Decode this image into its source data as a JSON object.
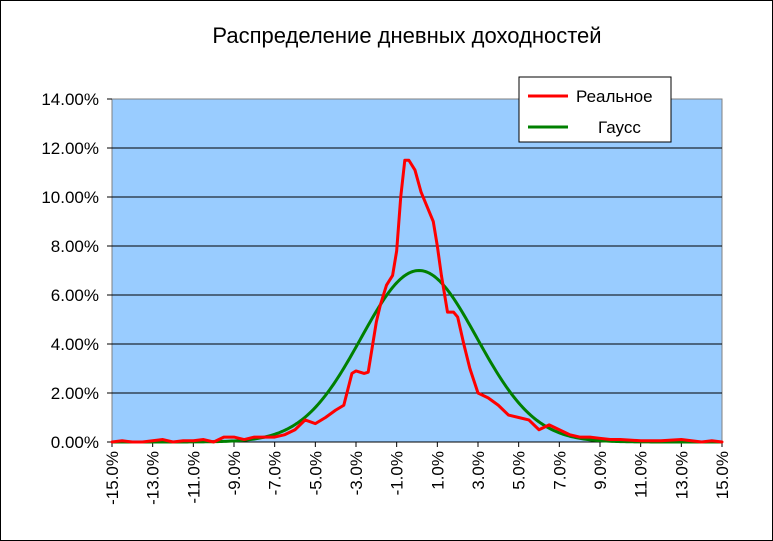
{
  "chart_data": {
    "type": "line",
    "title": "Распределение  дневных доходностей",
    "xlabel": "",
    "ylabel": "",
    "xlim": [
      -15,
      15
    ],
    "ylim": [
      0,
      14
    ],
    "y_ticks": [
      "0.00%",
      "2.00%",
      "4.00%",
      "6.00%",
      "8.00%",
      "10.00%",
      "12.00%",
      "14.00%"
    ],
    "x_ticks": [
      "-15.0%",
      "-13.0%",
      "-11.0%",
      "-9.0%",
      "-7.0%",
      "-5.0%",
      "-3.0%",
      "-1.0%",
      "1.0%",
      "3.0%",
      "5.0%",
      "7.0%",
      "9.0%",
      "11.0%",
      "13.0%",
      "15.0%"
    ],
    "grid": true,
    "legend_position": "top-right",
    "plot_background": "#99CCFF",
    "series": [
      {
        "name": "Реальное",
        "color": "#FF0000",
        "points": [
          [
            -15.0,
            0.0
          ],
          [
            -14.5,
            0.05
          ],
          [
            -14.0,
            0.0
          ],
          [
            -13.5,
            0.0
          ],
          [
            -13.0,
            0.05
          ],
          [
            -12.5,
            0.1
          ],
          [
            -12.0,
            0.0
          ],
          [
            -11.5,
            0.05
          ],
          [
            -11.0,
            0.05
          ],
          [
            -10.5,
            0.1
          ],
          [
            -10.0,
            0.0
          ],
          [
            -9.5,
            0.2
          ],
          [
            -9.0,
            0.2
          ],
          [
            -8.5,
            0.1
          ],
          [
            -8.0,
            0.2
          ],
          [
            -7.5,
            0.2
          ],
          [
            -7.0,
            0.2
          ],
          [
            -6.5,
            0.3
          ],
          [
            -6.0,
            0.5
          ],
          [
            -5.5,
            0.9
          ],
          [
            -5.0,
            0.75
          ],
          [
            -4.5,
            1.0
          ],
          [
            -4.0,
            1.3
          ],
          [
            -3.6,
            1.5
          ],
          [
            -3.2,
            2.8
          ],
          [
            -3.0,
            2.9
          ],
          [
            -2.6,
            2.8
          ],
          [
            -2.4,
            2.85
          ],
          [
            -2.0,
            4.9
          ],
          [
            -1.8,
            5.6
          ],
          [
            -1.5,
            6.4
          ],
          [
            -1.2,
            6.8
          ],
          [
            -1.0,
            7.8
          ],
          [
            -0.8,
            10.0
          ],
          [
            -0.6,
            11.5
          ],
          [
            -0.4,
            11.5
          ],
          [
            -0.1,
            11.1
          ],
          [
            0.2,
            10.2
          ],
          [
            0.5,
            9.6
          ],
          [
            0.8,
            9.0
          ],
          [
            1.0,
            8.0
          ],
          [
            1.2,
            6.8
          ],
          [
            1.5,
            5.3
          ],
          [
            1.8,
            5.3
          ],
          [
            2.0,
            5.1
          ],
          [
            2.3,
            4.0
          ],
          [
            2.6,
            3.0
          ],
          [
            3.0,
            2.0
          ],
          [
            3.5,
            1.8
          ],
          [
            4.0,
            1.5
          ],
          [
            4.5,
            1.1
          ],
          [
            5.0,
            1.0
          ],
          [
            5.5,
            0.9
          ],
          [
            6.0,
            0.5
          ],
          [
            6.5,
            0.7
          ],
          [
            7.0,
            0.5
          ],
          [
            7.5,
            0.3
          ],
          [
            8.0,
            0.2
          ],
          [
            8.5,
            0.2
          ],
          [
            9.0,
            0.15
          ],
          [
            9.5,
            0.1
          ],
          [
            10.0,
            0.1
          ],
          [
            11.0,
            0.05
          ],
          [
            12.0,
            0.05
          ],
          [
            13.0,
            0.1
          ],
          [
            13.5,
            0.05
          ],
          [
            14.0,
            0.0
          ],
          [
            14.5,
            0.05
          ],
          [
            15.0,
            0.0
          ]
        ]
      },
      {
        "name": "Гаусс",
        "color": "#008000",
        "mean": 0.1,
        "sd": 2.85,
        "peak": 7.0
      }
    ]
  }
}
